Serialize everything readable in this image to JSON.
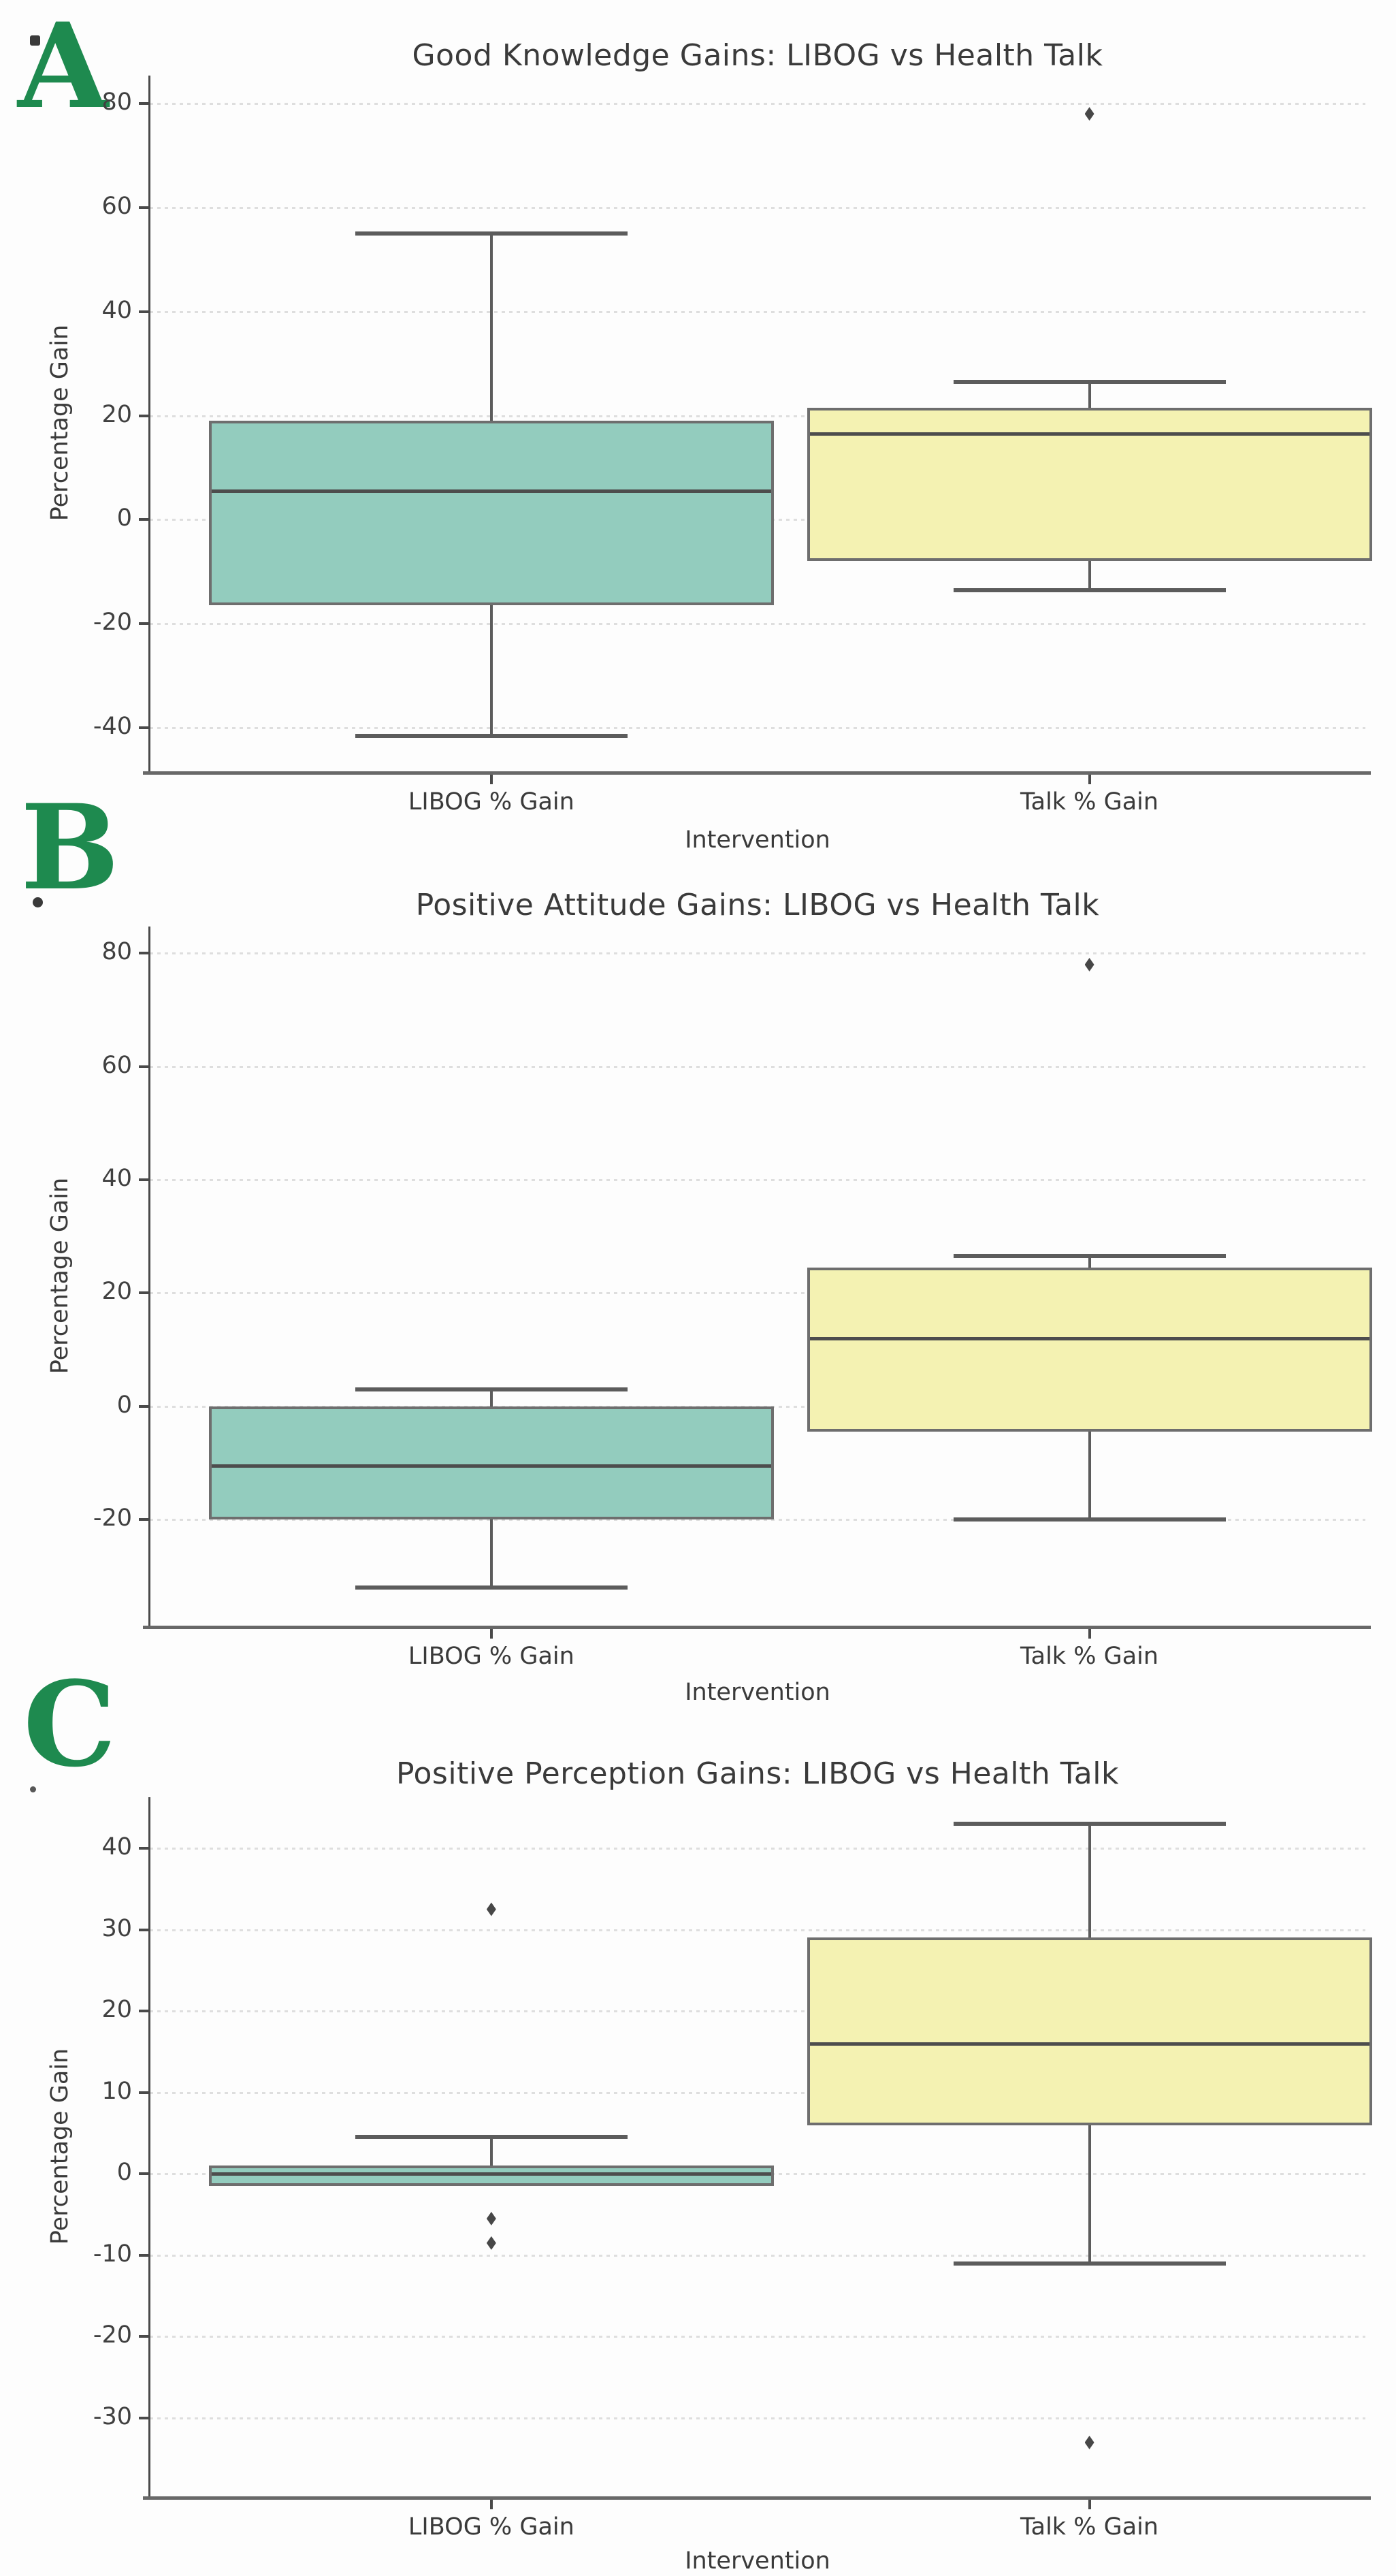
{
  "figure": {
    "background": "#fdfdfd",
    "panel_letter_color": "#1e8a4f",
    "n_panels": 3
  },
  "colors": {
    "libog_box_fill": "#93ccbe",
    "talk_box_fill": "#f4f2b2",
    "box_edge": "#6e6e6e",
    "median_line": "#4d4d4d",
    "whisker": "#5c5c5c",
    "outlier": "#474747",
    "gridline": "#dedede",
    "axis_spine": "#4a4a4a",
    "text": "#3a3a3a"
  },
  "chart_data": [
    {
      "type": "box",
      "panel_label": "A",
      "title": "Good Knowledge Gains: LIBOG vs Health Talk",
      "xlabel": "Intervention",
      "ylabel": "Percentage Gain",
      "categories": [
        "LIBOG % Gain",
        "Talk % Gain"
      ],
      "yticks": [
        80,
        60,
        40,
        20,
        0,
        -20,
        -40
      ],
      "ylim": [
        -48.5,
        85.1
      ],
      "grid": "dotted-horizontal",
      "legend": "none",
      "series": [
        {
          "name": "LIBOG % Gain",
          "whisker_low": -41.5,
          "q1": -16.5,
          "median": 5.5,
          "q3": 19,
          "whisker_high": 55,
          "outliers": []
        },
        {
          "name": "Talk % Gain",
          "whisker_low": -13.5,
          "q1": -8,
          "median": 16.5,
          "q3": 21.5,
          "whisker_high": 26.5,
          "outliers": [
            78
          ]
        }
      ]
    },
    {
      "type": "box",
      "panel_label": "B",
      "title": "Positive Attitude Gains: LIBOG vs Health Talk",
      "xlabel": "Intervention",
      "ylabel": "Percentage Gain",
      "categories": [
        "LIBOG % Gain",
        "Talk % Gain"
      ],
      "yticks": [
        80,
        60,
        40,
        20,
        0,
        -20
      ],
      "ylim": [
        -38.9,
        84.5
      ],
      "grid": "dotted-horizontal",
      "legend": "none",
      "series": [
        {
          "name": "LIBOG % Gain",
          "whisker_low": -32,
          "q1": -20,
          "median": -10.5,
          "q3": 0,
          "whisker_high": 3,
          "outliers": []
        },
        {
          "name": "Talk % Gain",
          "whisker_low": -20,
          "q1": -4.5,
          "median": 12,
          "q3": 24.5,
          "whisker_high": 26.5,
          "outliers": [
            78
          ]
        }
      ]
    },
    {
      "type": "box",
      "panel_label": "C",
      "title": "Positive Perception Gains: LIBOG vs Health Talk",
      "xlabel": "Intervention",
      "ylabel": "Percentage Gain",
      "categories": [
        "LIBOG % Gain",
        "Talk % Gain"
      ],
      "yticks": [
        40,
        30,
        20,
        10,
        0,
        -10,
        -20,
        -30
      ],
      "ylim": [
        -39.7,
        46.1
      ],
      "grid": "dotted-horizontal",
      "legend": "none",
      "series": [
        {
          "name": "LIBOG % Gain",
          "whisker_low": null,
          "q1": -1.5,
          "median": 0,
          "q3": 1,
          "whisker_high": 4.5,
          "outliers": [
            32.5,
            -5.5,
            -8.5
          ]
        },
        {
          "name": "Talk % Gain",
          "whisker_low": -11,
          "q1": 6,
          "median": 16,
          "q3": 29,
          "whisker_high": 43,
          "outliers": [
            -33
          ]
        }
      ]
    }
  ]
}
